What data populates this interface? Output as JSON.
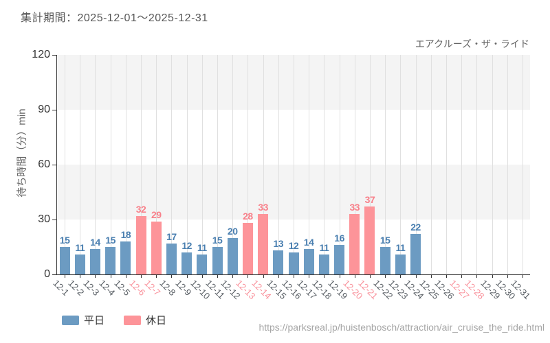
{
  "header": {
    "title": "集計期間：2025-12-01～2025-12-31",
    "attraction": "エアクルーズ・ザ・ライド"
  },
  "footer": {
    "url": "https://parksreal.jp/huistenbosch/attraction/air_cruise_the_ride.html"
  },
  "chart_data": {
    "type": "bar",
    "title": "集計期間：2025-12-01～2025-12-31",
    "xlabel": "",
    "ylabel": "待ち時間（分）min",
    "ylim": [
      0,
      120
    ],
    "yticks": [
      0,
      30,
      60,
      90,
      120
    ],
    "grid": "horizontal-bands-and-vertical-lines",
    "legend_position": "bottom-left",
    "categories": [
      "12-1",
      "12-2",
      "12-3",
      "12-4",
      "12-5",
      "12-6",
      "12-7",
      "12-8",
      "12-9",
      "12-10",
      "12-11",
      "12-12",
      "12-13",
      "12-14",
      "12-15",
      "12-16",
      "12-17",
      "12-18",
      "12-19",
      "12-20",
      "12-21",
      "12-22",
      "12-23",
      "12-24",
      "12-25",
      "12-26",
      "12-27",
      "12-28",
      "12-29",
      "12-30",
      "12-31"
    ],
    "values": [
      15,
      11,
      14,
      15,
      18,
      32,
      29,
      17,
      12,
      11,
      15,
      20,
      28,
      33,
      13,
      12,
      14,
      11,
      16,
      33,
      37,
      15,
      11,
      22,
      null,
      null,
      null,
      null,
      null,
      null,
      null
    ],
    "day_types": [
      "weekday",
      "weekday",
      "weekday",
      "weekday",
      "weekday",
      "holiday",
      "holiday",
      "weekday",
      "weekday",
      "weekday",
      "weekday",
      "weekday",
      "holiday",
      "holiday",
      "weekday",
      "weekday",
      "weekday",
      "weekday",
      "weekday",
      "holiday",
      "holiday",
      "weekday",
      "weekday",
      "weekday",
      "weekday",
      "weekday",
      "holiday",
      "holiday",
      "weekday",
      "weekday",
      "weekday"
    ],
    "legend": [
      {
        "label": "平日",
        "type": "weekday"
      },
      {
        "label": "休日",
        "type": "holiday"
      }
    ],
    "colors": {
      "weekday_bar": "#6c9bc2",
      "holiday_bar": "#fd9499",
      "weekday_value_label": "#4a7fb0",
      "holiday_value_label": "#f8808a",
      "weekday_tick_label": "#555b61",
      "holiday_tick_label": "#f9909a",
      "band_fill": "#f4f4f4",
      "gridline": "#e0e0e0",
      "axis": "#333333"
    }
  }
}
